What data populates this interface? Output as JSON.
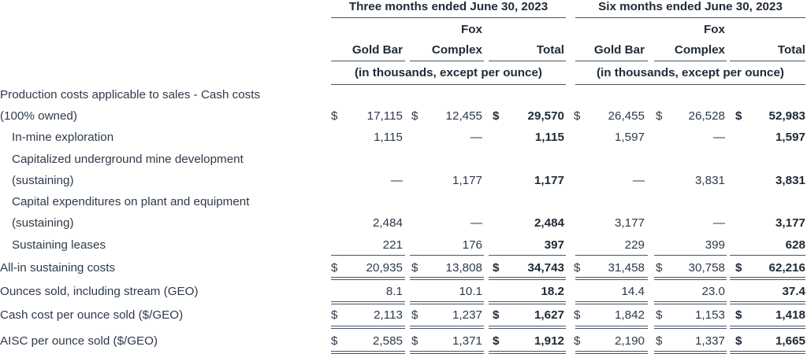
{
  "header": {
    "group1_title": "Three months ended June 30, 2023",
    "group2_title": "Six months ended June 30, 2023",
    "col_gold_bar": "Gold Bar",
    "col_fox_line1": "Fox",
    "col_fox_line2": "Complex",
    "col_total": "Total",
    "units_note": "(in thousands, except per ounce)"
  },
  "rows": [
    {
      "label_line1": "Production costs applicable to sales - Cash costs",
      "label_line2": "(100% owned)",
      "values": [
        "17,115",
        "12,455",
        "29,570",
        "26,455",
        "26,528",
        "52,983"
      ]
    },
    {
      "label": "In-mine exploration",
      "values": [
        "1,115",
        "—",
        "1,115",
        "1,597",
        "—",
        "1,597"
      ]
    },
    {
      "label_line1": "Capitalized underground mine development",
      "label_line2": "(sustaining)",
      "values": [
        "—",
        "1,177",
        "1,177",
        "—",
        "3,831",
        "3,831"
      ]
    },
    {
      "label_line1": "Capital expenditures on plant and equipment",
      "label_line2": "(sustaining)",
      "values": [
        "2,484",
        "—",
        "2,484",
        "3,177",
        "—",
        "3,177"
      ]
    },
    {
      "label": "Sustaining leases",
      "values": [
        "221",
        "176",
        "397",
        "229",
        "399",
        "628"
      ]
    },
    {
      "label": "All-in sustaining costs",
      "values": [
        "20,935",
        "13,808",
        "34,743",
        "31,458",
        "30,758",
        "62,216"
      ]
    },
    {
      "label": "Ounces sold, including stream (GEO)",
      "values": [
        "8.1",
        "10.1",
        "18.2",
        "14.4",
        "23.0",
        "37.4"
      ]
    },
    {
      "label": "Cash cost per ounce sold ($/GEO)",
      "values": [
        "2,113",
        "1,237",
        "1,627",
        "1,842",
        "1,153",
        "1,418"
      ]
    },
    {
      "label": "AISC per ounce sold ($/GEO)",
      "values": [
        "2,585",
        "1,371",
        "1,912",
        "2,190",
        "1,337",
        "1,665"
      ]
    }
  ],
  "currency_symbol": "$"
}
